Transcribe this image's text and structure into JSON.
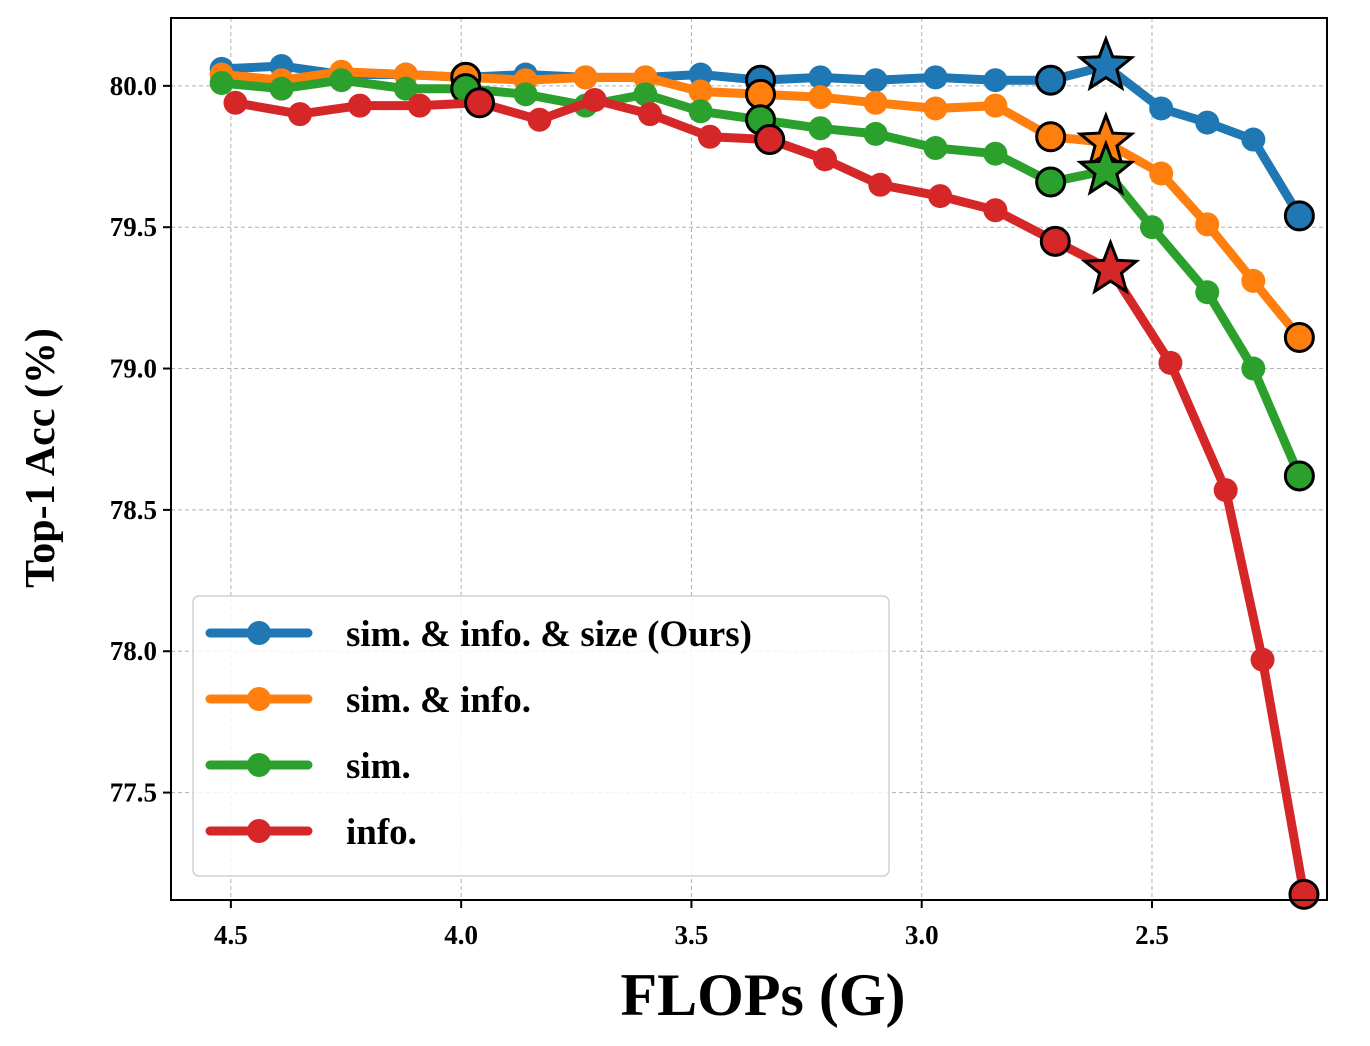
{
  "chart_data": {
    "type": "line",
    "xlabel": "FLOPs (G)",
    "ylabel": "Top-1 Acc (%)",
    "xlim": [
      4.63,
      2.12
    ],
    "ylim": [
      77.12,
      80.24
    ],
    "x_reversed": true,
    "grid": true,
    "xticks": [
      4.5,
      4.0,
      3.5,
      3.0,
      2.5
    ],
    "xtick_labels": [
      "4.5",
      "4.0",
      "3.5",
      "3.0",
      "2.5"
    ],
    "yticks": [
      77.5,
      78.0,
      78.5,
      79.0,
      79.5,
      80.0
    ],
    "ytick_labels": [
      "77.5",
      "78.0",
      "78.5",
      "79.0",
      "79.5",
      "80.0"
    ],
    "legend_position": "lower-left",
    "series": [
      {
        "name": "sim. & info. & size (Ours)",
        "color": "#1f77b4",
        "x": [
          4.52,
          4.39,
          4.26,
          4.12,
          3.99,
          3.86,
          3.73,
          3.6,
          3.48,
          3.35,
          3.22,
          3.1,
          2.97,
          2.84,
          2.72,
          2.6,
          2.48,
          2.38,
          2.28,
          2.18
        ],
        "y": [
          80.06,
          80.07,
          80.04,
          80.04,
          80.03,
          80.04,
          80.03,
          80.03,
          80.04,
          80.02,
          80.03,
          80.02,
          80.03,
          80.02,
          80.02,
          80.07,
          79.92,
          79.87,
          79.81,
          79.54
        ],
        "outlined": [
          4,
          9,
          14,
          19
        ],
        "star": 15
      },
      {
        "name": "sim. & info.",
        "color": "#ff7f0e",
        "x": [
          4.52,
          4.39,
          4.26,
          4.12,
          3.99,
          3.86,
          3.73,
          3.6,
          3.48,
          3.35,
          3.22,
          3.1,
          2.97,
          2.84,
          2.72,
          2.6,
          2.48,
          2.38,
          2.28,
          2.18
        ],
        "y": [
          80.04,
          80.02,
          80.05,
          80.04,
          80.03,
          80.02,
          80.03,
          80.03,
          79.98,
          79.97,
          79.96,
          79.94,
          79.92,
          79.93,
          79.82,
          79.8,
          79.69,
          79.51,
          79.31,
          79.11
        ],
        "outlined": [
          4,
          9,
          14,
          19
        ],
        "star": 15
      },
      {
        "name": "sim.",
        "color": "#2ca02c",
        "x": [
          4.52,
          4.39,
          4.26,
          4.12,
          3.99,
          3.86,
          3.73,
          3.6,
          3.48,
          3.35,
          3.22,
          3.1,
          2.97,
          2.84,
          2.72,
          2.6,
          2.5,
          2.38,
          2.28,
          2.18
        ],
        "y": [
          80.01,
          79.99,
          80.02,
          79.99,
          79.99,
          79.97,
          79.93,
          79.97,
          79.91,
          79.88,
          79.85,
          79.83,
          79.78,
          79.76,
          79.66,
          79.7,
          79.5,
          79.27,
          79.0,
          78.62
        ],
        "outlined": [
          4,
          9,
          14,
          19
        ],
        "star": 15
      },
      {
        "name": "info.",
        "color": "#d62728",
        "x": [
          4.49,
          4.35,
          4.22,
          4.09,
          3.96,
          3.83,
          3.71,
          3.59,
          3.46,
          3.33,
          3.21,
          3.09,
          2.96,
          2.84,
          2.71,
          2.59,
          2.46,
          2.34,
          2.26,
          2.17
        ],
        "y": [
          79.94,
          79.9,
          79.93,
          79.93,
          79.94,
          79.88,
          79.95,
          79.9,
          79.82,
          79.81,
          79.74,
          79.65,
          79.61,
          79.56,
          79.45,
          79.35,
          79.02,
          78.57,
          77.97,
          77.14
        ],
        "outlined": [
          4,
          9,
          14,
          19
        ],
        "star": 15
      }
    ]
  }
}
